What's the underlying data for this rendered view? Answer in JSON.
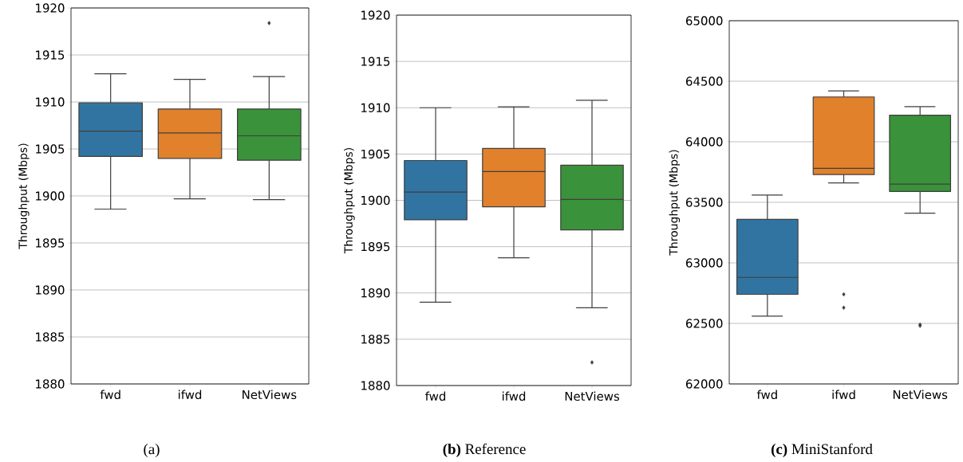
{
  "chart_data": [
    {
      "type": "box",
      "subtitle": "(a)",
      "ylabel": "Throughput (Mbps)",
      "categories": [
        "fwd",
        "ifwd",
        "NetViews"
      ],
      "colors": [
        "#3274a1",
        "#e1812c",
        "#3a923a"
      ],
      "boxes": [
        {
          "low": 1898.6,
          "q1": 1904.2,
          "median": 1906.9,
          "q3": 1909.9,
          "high": 1913.0
        },
        {
          "low": 1899.7,
          "q1": 1904.0,
          "median": 1906.7,
          "q3": 1909.25,
          "high": 1912.4
        },
        {
          "low": 1899.6,
          "q1": 1903.8,
          "median": 1906.4,
          "q3": 1909.25,
          "high": 1912.7,
          "outliers": [
            1918.4
          ]
        }
      ],
      "ylim": [
        1880,
        1920
      ],
      "yticks": [
        1880,
        1885,
        1890,
        1895,
        1900,
        1905,
        1910,
        1915,
        1920
      ],
      "grid": "y"
    },
    {
      "type": "box",
      "subtitle": "**(b)** Reference",
      "ylabel": "Throughput (Mbps)",
      "categories": [
        "fwd",
        "ifwd",
        "NetViews"
      ],
      "colors": [
        "#3274a1",
        "#e1812c",
        "#3a923a"
      ],
      "boxes": [
        {
          "low": 1889.0,
          "q1": 1897.9,
          "median": 1900.9,
          "q3": 1904.3,
          "high": 1910.0
        },
        {
          "low": 1893.8,
          "q1": 1899.3,
          "median": 1903.1,
          "q3": 1905.6,
          "high": 1910.1
        },
        {
          "low": 1888.4,
          "q1": 1896.8,
          "median": 1900.1,
          "q3": 1903.8,
          "high": 1910.8,
          "outliers": [
            1882.5
          ]
        }
      ],
      "ylim": [
        1880,
        1920
      ],
      "yticks": [
        1880,
        1885,
        1890,
        1895,
        1900,
        1905,
        1910,
        1915,
        1920
      ],
      "grid": "y"
    },
    {
      "type": "box",
      "subtitle": "**(c)** MiniStanford",
      "ylabel": "Throughput (Mbps)",
      "categories": [
        "fwd",
        "ifwd",
        "NetViews"
      ],
      "colors": [
        "#3274a1",
        "#e1812c",
        "#3a923a"
      ],
      "boxes": [
        {
          "low": 62560,
          "q1": 62740,
          "median": 62880,
          "q3": 63360,
          "high": 63560
        },
        {
          "low": 63660,
          "q1": 63730,
          "median": 63780,
          "q3": 64370,
          "high": 64420,
          "outliers": [
            62740,
            62630
          ]
        },
        {
          "low": 63410,
          "q1": 63590,
          "median": 63650,
          "q3": 64220,
          "high": 64290,
          "outliers": [
            62490,
            62480
          ]
        }
      ],
      "ylim": [
        62000,
        65000
      ],
      "yticks": [
        62000,
        62500,
        63000,
        63500,
        64000,
        64500,
        65000
      ],
      "grid": "y"
    }
  ]
}
